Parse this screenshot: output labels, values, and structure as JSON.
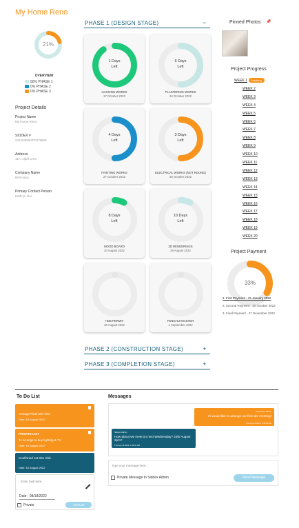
{
  "header": {
    "title": "My Home Reno"
  },
  "overview": {
    "percent": 21,
    "percent_label": "21%",
    "title": "OVERVIEW",
    "legend": [
      {
        "label": "50% PHASE 1",
        "color": "#cfe8e8"
      },
      {
        "label": "0% PHASE 2",
        "color": "#1a8fc9"
      },
      {
        "label": "0% PHASE 3",
        "color": "#f7941d"
      }
    ]
  },
  "project_details": {
    "title": "Project Details",
    "fields": [
      {
        "label": "Project Name",
        "value": "My Home Reno"
      },
      {
        "label": "SIDDEX #",
        "value": "2412030007FF878808"
      },
      {
        "label": "Address",
        "value": "11A, Aljuff Cres."
      },
      {
        "label": "Company Name",
        "value": "Britt Haus"
      },
      {
        "label": "Primary Contact Person",
        "value": "Kathryn Ooi"
      }
    ]
  },
  "phases": [
    {
      "title": "PHASE 1 (DESIGN STAGE)",
      "toggle": "−",
      "cards": [
        {
          "days": "1 Days",
          "left": "Left",
          "name": "HACKING WORKS",
          "date": "17 October 2022",
          "progress": 90,
          "color": "#1ec87a"
        },
        {
          "days": "6 Days",
          "left": "Left",
          "name": "PLASTERING WORKS",
          "date": "24 October 2022",
          "progress": 50,
          "color": "#c7e6e6"
        },
        {
          "days": "4 Days",
          "left": "Left",
          "name": "PAINTING WORKS",
          "date": "27 October 2022",
          "progress": 50,
          "color": "#1a8fc9"
        },
        {
          "days": "3 Days",
          "left": "Left",
          "name": "ELECTRICAL WORKS (NOT ROUND)",
          "date": "30 October 2022",
          "progress": 50,
          "color": "#f7941d"
        },
        {
          "days": "8 Days",
          "left": "Left",
          "name": "MOOD BOARD",
          "date": "20 August 2022",
          "progress": 8,
          "color": "#1ec87a"
        },
        {
          "days": "10 Days",
          "left": "Left",
          "name": "3D RENDERINGS",
          "date": "28 August 2022",
          "progress": 8,
          "color": "#c7e6e6"
        },
        {
          "name": "HDB PERMIT",
          "date": "30 August 2022",
          "progress": 0,
          "color": "#e6e6e6"
        },
        {
          "name": "FENGHUI MASTER",
          "date": "1 September 2022",
          "progress": 0,
          "color": "#e6e6e6"
        }
      ]
    },
    {
      "title": "PHASE 2 (CONSTRUCTION STAGE)",
      "toggle": "+"
    },
    {
      "title": "PHASE 3 (COMPLETION STAGE)",
      "toggle": "+"
    }
  ],
  "pinned_photos": {
    "title": "Pinned Photos",
    "icon": "📌"
  },
  "project_progress": {
    "title": "Project Progress",
    "badge": "Hacking",
    "weeks": [
      "WEEK 1",
      "WEEK 2",
      "WEEK 3",
      "WEEK 4",
      "WEEK 5",
      "WEEK 6",
      "WEEK 7",
      "WEEK 8",
      "WEEK 9",
      "WEEK 10",
      "WEEK 11",
      "WEEK 12",
      "WEEK 13",
      "WEEK 14",
      "WEEK 15",
      "WEEK 16",
      "WEEK 17",
      "WEEK 18",
      "WEEK 19",
      "WEEK 20"
    ]
  },
  "project_payment": {
    "title": "Project Payment",
    "percent": 33,
    "percent_label": "33%",
    "color": "#f7941d",
    "items": [
      "1. First Payment - 15 January 2022",
      "2. Second Payment - 30 October 2022",
      "3. Final Payment - 27 December 2022"
    ]
  },
  "todo": {
    "title": "To Do List",
    "items": [
      {
        "title": "Arrange Final Site Visit",
        "date": "Date: 16 August 2022",
        "color": "#f7941d"
      },
      {
        "tag": "PRIVATE LIST",
        "title": "To arrange to buy lighting & TV",
        "date": "Date: 16 August 2022",
        "color": "#f7941d"
      },
      {
        "title": "Confirmed 1st Site Visit",
        "date": "Date: 16 August 2022",
        "color": "#145e78"
      }
    ],
    "input_placeholder": "Enter task here",
    "date_label": "Date : 08/18/2022",
    "private_label": "Private",
    "button": "Add List"
  },
  "messages": {
    "title": "Messages",
    "items": [
      {
        "sender": "Contractor Admin",
        "text": "Hi would like to arrange our first site meeting!",
        "time": "Thu Aug 18 2022, 4:45:55 AM",
        "side": "right",
        "color": "#f7941d"
      },
      {
        "sender": "Siddex Admin",
        "text": "How about we meet on next Wednesday? 24th August 2pm?",
        "time": "Thu Aug 18 2022, 4:46:10 AM",
        "side": "left",
        "color": "#145e78"
      }
    ],
    "input_placeholder": "Type your message here...",
    "private_label": "Private Message to Siddex Admin",
    "button": "Send Message"
  }
}
